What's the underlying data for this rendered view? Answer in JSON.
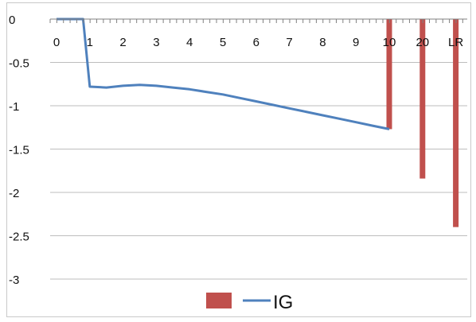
{
  "chart_data": {
    "type": "bar+line",
    "title": "",
    "xlabel": "",
    "ylabel": "",
    "ylim": [
      -3,
      0
    ],
    "y_ticks": [
      0,
      -0.5,
      -1,
      -1.5,
      -2,
      -2.5,
      -3
    ],
    "y_tick_labels": [
      "0",
      "-0.5",
      "-1",
      "-1.5",
      "-2",
      "-2.5",
      "-3"
    ],
    "x_tick_labels": [
      "0",
      "1",
      "2",
      "3",
      "4",
      "5",
      "6",
      "7",
      "8",
      "9",
      "10",
      "20",
      "LR"
    ],
    "grid": "horizontal",
    "legend_position": "bottom",
    "colors": {
      "bar": "#c0504d",
      "line": "#4f81bd",
      "grid": "#bdbdbd",
      "axis": "#808080"
    },
    "bar_series": {
      "categories": [
        "10",
        "20",
        "LR"
      ],
      "values": [
        -1.27,
        -1.84,
        -2.4
      ]
    },
    "line_series": {
      "name": "IG",
      "x": [
        0,
        0.5,
        0.8,
        1,
        1.5,
        2,
        2.5,
        3,
        3.5,
        4,
        4.5,
        5,
        5.5,
        6,
        6.5,
        7,
        7.5,
        8,
        8.5,
        9,
        9.5,
        10
      ],
      "y": [
        0,
        0,
        0,
        -0.78,
        -0.79,
        -0.77,
        -0.76,
        -0.77,
        -0.79,
        -0.81,
        -0.84,
        -0.87,
        -0.91,
        -0.95,
        -0.99,
        -1.03,
        -1.07,
        -1.11,
        -1.15,
        -1.19,
        -1.23,
        -1.27
      ]
    },
    "legend": {
      "line_label": "IG"
    }
  }
}
